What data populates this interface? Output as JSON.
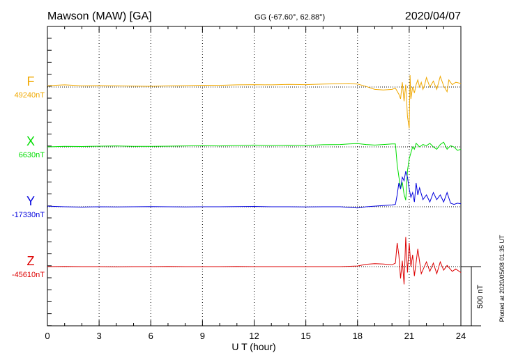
{
  "header": {
    "station": "Mawson (MAW)  [GA]",
    "coords": "GG (-67.60°,  62.88°)",
    "date": "2020/04/07"
  },
  "plotted_note": "Plotted at 2020/05/08 01:35 UT",
  "scale_label": "500 nT",
  "chart_data": {
    "type": "line",
    "xlabel": "U T (hour)",
    "xlim": [
      0,
      24
    ],
    "xticks": [
      "0",
      "3",
      "6",
      "9",
      "12",
      "15",
      "18",
      "21",
      "24"
    ],
    "scale_nT": 500,
    "grid": "dotted vertical at every 3 hours",
    "series": [
      {
        "name": "F",
        "baseline_label": "49240nT",
        "color": "#f0a800",
        "points": [
          [
            0,
            10
          ],
          [
            0.5,
            15
          ],
          [
            1,
            18
          ],
          [
            2,
            10
          ],
          [
            3,
            12
          ],
          [
            4,
            10
          ],
          [
            5,
            8
          ],
          [
            6,
            6
          ],
          [
            7,
            10
          ],
          [
            8,
            12
          ],
          [
            9,
            15
          ],
          [
            10,
            14
          ],
          [
            11,
            18
          ],
          [
            12,
            20
          ],
          [
            13,
            18
          ],
          [
            14,
            22
          ],
          [
            15,
            20
          ],
          [
            16,
            25
          ],
          [
            17,
            28
          ],
          [
            17.5,
            30
          ],
          [
            18,
            25
          ],
          [
            18.5,
            5
          ],
          [
            19,
            -20
          ],
          [
            19.5,
            -25
          ],
          [
            20,
            -20
          ],
          [
            20.2,
            -10
          ],
          [
            20.4,
            -60
          ],
          [
            20.5,
            -100
          ],
          [
            20.6,
            40
          ],
          [
            20.7,
            -120
          ],
          [
            20.8,
            20
          ],
          [
            20.9,
            -250
          ],
          [
            21,
            -350
          ],
          [
            21.05,
            100
          ],
          [
            21.1,
            -100
          ],
          [
            21.2,
            0
          ],
          [
            21.3,
            -50
          ],
          [
            21.4,
            20
          ],
          [
            21.5,
            60
          ],
          [
            21.6,
            0
          ],
          [
            21.7,
            40
          ],
          [
            21.8,
            -20
          ],
          [
            21.9,
            20
          ],
          [
            22,
            80
          ],
          [
            22.2,
            0
          ],
          [
            22.4,
            50
          ],
          [
            22.6,
            -20
          ],
          [
            22.8,
            90
          ],
          [
            23,
            10
          ],
          [
            23.2,
            -40
          ],
          [
            23.3,
            60
          ],
          [
            23.5,
            20
          ],
          [
            23.7,
            40
          ],
          [
            24,
            30
          ]
        ]
      },
      {
        "name": "X",
        "baseline_label": "6630nT",
        "color": "#00dd00",
        "points": [
          [
            0,
            0
          ],
          [
            1,
            5
          ],
          [
            2,
            3
          ],
          [
            3,
            6
          ],
          [
            4,
            8
          ],
          [
            5,
            5
          ],
          [
            6,
            4
          ],
          [
            7,
            6
          ],
          [
            8,
            8
          ],
          [
            9,
            10
          ],
          [
            10,
            8
          ],
          [
            11,
            12
          ],
          [
            12,
            15
          ],
          [
            13,
            12
          ],
          [
            14,
            14
          ],
          [
            15,
            12
          ],
          [
            16,
            18
          ],
          [
            17,
            20
          ],
          [
            17.5,
            25
          ],
          [
            18,
            28
          ],
          [
            18.5,
            20
          ],
          [
            19,
            15
          ],
          [
            19.5,
            20
          ],
          [
            20,
            25
          ],
          [
            20.2,
            25
          ],
          [
            20.3,
            -150
          ],
          [
            20.4,
            -250
          ],
          [
            20.5,
            -350
          ],
          [
            20.6,
            -300
          ],
          [
            20.7,
            -400
          ],
          [
            20.8,
            -450
          ],
          [
            20.9,
            -200
          ],
          [
            21,
            -100
          ],
          [
            21.1,
            -50
          ],
          [
            21.2,
            0
          ],
          [
            21.3,
            -20
          ],
          [
            21.4,
            30
          ],
          [
            21.6,
            0
          ],
          [
            21.8,
            20
          ],
          [
            22,
            10
          ],
          [
            22.2,
            30
          ],
          [
            22.4,
            0
          ],
          [
            22.6,
            -20
          ],
          [
            22.8,
            20
          ],
          [
            23,
            40
          ],
          [
            23.2,
            -20
          ],
          [
            23.4,
            10
          ],
          [
            23.6,
            0
          ],
          [
            23.8,
            -30
          ],
          [
            24,
            -20
          ]
        ]
      },
      {
        "name": "Y",
        "baseline_label": "-17330nT",
        "color": "#0000dd",
        "points": [
          [
            0,
            5
          ],
          [
            1,
            0
          ],
          [
            2,
            -3
          ],
          [
            3,
            0
          ],
          [
            4,
            -2
          ],
          [
            5,
            0
          ],
          [
            6,
            2
          ],
          [
            7,
            0
          ],
          [
            8,
            -2
          ],
          [
            9,
            0
          ],
          [
            10,
            0
          ],
          [
            11,
            2
          ],
          [
            12,
            3
          ],
          [
            13,
            0
          ],
          [
            14,
            0
          ],
          [
            15,
            -2
          ],
          [
            16,
            0
          ],
          [
            17,
            0
          ],
          [
            17.5,
            -5
          ],
          [
            18,
            -10
          ],
          [
            18.5,
            0
          ],
          [
            19,
            5
          ],
          [
            19.5,
            10
          ],
          [
            20,
            15
          ],
          [
            20.2,
            20
          ],
          [
            20.3,
            100
          ],
          [
            20.4,
            200
          ],
          [
            20.5,
            150
          ],
          [
            20.6,
            250
          ],
          [
            20.7,
            220
          ],
          [
            20.8,
            300
          ],
          [
            20.9,
            250
          ],
          [
            21,
            150
          ],
          [
            21.1,
            80
          ],
          [
            21.2,
            120
          ],
          [
            21.3,
            40
          ],
          [
            21.4,
            200
          ],
          [
            21.5,
            100
          ],
          [
            21.6,
            160
          ],
          [
            21.8,
            60
          ],
          [
            22,
            100
          ],
          [
            22.2,
            40
          ],
          [
            22.4,
            120
          ],
          [
            22.6,
            60
          ],
          [
            22.8,
            100
          ],
          [
            23,
            40
          ],
          [
            23.2,
            120
          ],
          [
            23.4,
            30
          ],
          [
            23.6,
            20
          ],
          [
            23.8,
            30
          ],
          [
            24,
            25
          ]
        ]
      },
      {
        "name": "Z",
        "baseline_label": "-45610nT",
        "color": "#dd0000",
        "points": [
          [
            0,
            0
          ],
          [
            1,
            2
          ],
          [
            2,
            0
          ],
          [
            3,
            0
          ],
          [
            4,
            -2
          ],
          [
            5,
            0
          ],
          [
            6,
            0
          ],
          [
            7,
            2
          ],
          [
            8,
            0
          ],
          [
            9,
            0
          ],
          [
            10,
            0
          ],
          [
            11,
            2
          ],
          [
            12,
            0
          ],
          [
            13,
            0
          ],
          [
            14,
            0
          ],
          [
            15,
            0
          ],
          [
            16,
            0
          ],
          [
            17,
            0
          ],
          [
            18,
            5
          ],
          [
            18.5,
            20
          ],
          [
            19,
            25
          ],
          [
            19.5,
            22
          ],
          [
            20,
            15
          ],
          [
            20.2,
            30
          ],
          [
            20.3,
            200
          ],
          [
            20.4,
            100
          ],
          [
            20.5,
            -100
          ],
          [
            20.6,
            50
          ],
          [
            20.7,
            -150
          ],
          [
            20.8,
            250
          ],
          [
            20.9,
            -50
          ],
          [
            21,
            200
          ],
          [
            21.1,
            0
          ],
          [
            21.2,
            100
          ],
          [
            21.3,
            -80
          ],
          [
            21.5,
            150
          ],
          [
            21.7,
            -60
          ],
          [
            22,
            40
          ],
          [
            22.2,
            -40
          ],
          [
            22.4,
            30
          ],
          [
            22.6,
            -60
          ],
          [
            22.8,
            40
          ],
          [
            23,
            -30
          ],
          [
            23.2,
            10
          ],
          [
            23.5,
            -40
          ],
          [
            23.7,
            -20
          ],
          [
            24,
            -50
          ]
        ]
      }
    ]
  }
}
